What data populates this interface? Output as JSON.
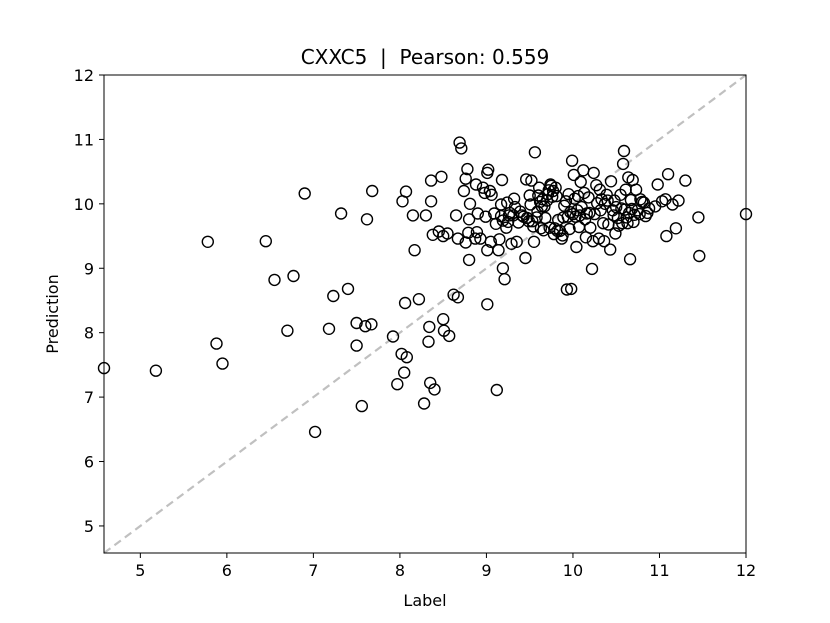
{
  "chart_data": {
    "type": "scatter",
    "title": "CXXC5  |  Pearson: 0.559",
    "xlabel": "Label",
    "ylabel": "Prediction",
    "xlim": [
      4.58,
      12.0
    ],
    "ylim": [
      4.58,
      12.0
    ],
    "xticks": [
      5,
      6,
      7,
      8,
      9,
      10,
      11,
      12
    ],
    "yticks": [
      5,
      6,
      7,
      8,
      9,
      10,
      11,
      12
    ],
    "grid": false,
    "reference_line": {
      "from": [
        4.58,
        4.58
      ],
      "to": [
        12.0,
        12.0
      ],
      "style": "dashed",
      "color": "#c0c0c0"
    },
    "marker": {
      "shape": "circle",
      "fill": "none",
      "stroke": "#000000"
    },
    "points": [
      [
        4.58,
        7.45
      ],
      [
        5.18,
        7.41
      ],
      [
        5.78,
        9.41
      ],
      [
        5.88,
        7.83
      ],
      [
        5.95,
        7.52
      ],
      [
        6.45,
        9.42
      ],
      [
        6.55,
        8.82
      ],
      [
        6.7,
        8.03
      ],
      [
        6.77,
        8.88
      ],
      [
        6.9,
        10.16
      ],
      [
        7.02,
        6.46
      ],
      [
        7.18,
        8.06
      ],
      [
        7.23,
        8.57
      ],
      [
        7.32,
        9.85
      ],
      [
        7.4,
        8.68
      ],
      [
        7.5,
        8.15
      ],
      [
        7.5,
        7.8
      ],
      [
        7.56,
        6.86
      ],
      [
        7.6,
        8.1
      ],
      [
        7.62,
        9.76
      ],
      [
        7.67,
        8.13
      ],
      [
        7.68,
        10.2
      ],
      [
        7.92,
        7.94
      ],
      [
        7.97,
        7.2
      ],
      [
        8.02,
        7.67
      ],
      [
        8.03,
        10.04
      ],
      [
        8.05,
        7.38
      ],
      [
        8.06,
        8.46
      ],
      [
        8.07,
        10.19
      ],
      [
        8.08,
        7.62
      ],
      [
        8.15,
        9.82
      ],
      [
        8.17,
        9.28
      ],
      [
        8.22,
        8.52
      ],
      [
        8.28,
        6.9
      ],
      [
        8.3,
        9.82
      ],
      [
        8.33,
        7.86
      ],
      [
        8.34,
        8.09
      ],
      [
        8.35,
        7.22
      ],
      [
        8.36,
        10.36
      ],
      [
        8.36,
        10.04
      ],
      [
        8.38,
        9.52
      ],
      [
        8.4,
        7.12
      ],
      [
        8.45,
        9.57
      ],
      [
        8.48,
        10.42
      ],
      [
        8.5,
        9.5
      ],
      [
        8.5,
        8.21
      ],
      [
        8.51,
        8.03
      ],
      [
        8.55,
        9.54
      ],
      [
        8.57,
        7.95
      ],
      [
        8.62,
        8.59
      ],
      [
        8.65,
        9.82
      ],
      [
        8.67,
        9.46
      ],
      [
        8.67,
        8.55
      ],
      [
        8.69,
        10.95
      ],
      [
        8.71,
        10.86
      ],
      [
        8.74,
        10.2
      ],
      [
        8.76,
        9.4
      ],
      [
        8.76,
        10.39
      ],
      [
        8.78,
        10.54
      ],
      [
        8.79,
        9.55
      ],
      [
        8.8,
        9.76
      ],
      [
        8.8,
        9.13
      ],
      [
        8.81,
        10.0
      ],
      [
        8.87,
        9.46
      ],
      [
        8.88,
        10.3
      ],
      [
        8.89,
        9.56
      ],
      [
        8.9,
        9.85
      ],
      [
        8.93,
        9.46
      ],
      [
        8.96,
        10.25
      ],
      [
        8.98,
        10.17
      ],
      [
        8.99,
        9.8
      ],
      [
        9.01,
        9.28
      ],
      [
        9.01,
        8.44
      ],
      [
        9.01,
        10.48
      ],
      [
        9.02,
        10.53
      ],
      [
        9.04,
        10.2
      ],
      [
        9.05,
        9.41
      ],
      [
        9.06,
        10.14
      ],
      [
        9.09,
        9.85
      ],
      [
        9.11,
        9.69
      ],
      [
        9.12,
        7.11
      ],
      [
        9.14,
        9.28
      ],
      [
        9.15,
        9.45
      ],
      [
        9.17,
        9.81
      ],
      [
        9.17,
        9.99
      ],
      [
        9.18,
        10.37
      ],
      [
        9.19,
        9.74
      ],
      [
        9.19,
        9.0
      ],
      [
        9.21,
        8.83
      ],
      [
        9.23,
        9.63
      ],
      [
        9.24,
        10.02
      ],
      [
        9.25,
        9.72
      ],
      [
        9.26,
        9.82
      ],
      [
        9.27,
        9.86
      ],
      [
        9.29,
        9.38
      ],
      [
        9.31,
        9.82
      ],
      [
        9.32,
        10.08
      ],
      [
        9.33,
        9.95
      ],
      [
        9.35,
        9.41
      ],
      [
        9.37,
        9.71
      ],
      [
        9.39,
        9.88
      ],
      [
        9.41,
        9.82
      ],
      [
        9.43,
        9.8
      ],
      [
        9.45,
        9.16
      ],
      [
        9.46,
        10.38
      ],
      [
        9.47,
        9.78
      ],
      [
        9.49,
        9.73
      ],
      [
        9.5,
        10.13
      ],
      [
        9.51,
        9.99
      ],
      [
        9.52,
        10.36
      ],
      [
        9.53,
        9.73
      ],
      [
        9.54,
        9.65
      ],
      [
        9.55,
        9.41
      ],
      [
        9.56,
        10.8
      ],
      [
        9.58,
        9.79
      ],
      [
        9.59,
        9.88
      ],
      [
        9.6,
        10.13
      ],
      [
        9.61,
        10.25
      ],
      [
        9.62,
        10.03
      ],
      [
        9.63,
        9.62
      ],
      [
        9.64,
        9.96
      ],
      [
        9.65,
        10.07
      ],
      [
        9.66,
        9.59
      ],
      [
        9.67,
        9.96
      ],
      [
        9.68,
        9.78
      ],
      [
        9.7,
        10.05
      ],
      [
        9.71,
        10.15
      ],
      [
        9.72,
        10.21
      ],
      [
        9.73,
        9.63
      ],
      [
        9.74,
        10.3
      ],
      [
        9.75,
        10.28
      ],
      [
        9.76,
        10.11
      ],
      [
        9.77,
        10.2
      ],
      [
        9.78,
        9.53
      ],
      [
        9.79,
        9.62
      ],
      [
        9.8,
        10.25
      ],
      [
        9.81,
        10.12
      ],
      [
        9.82,
        9.58
      ],
      [
        9.83,
        9.75
      ],
      [
        9.85,
        9.58
      ],
      [
        9.87,
        9.46
      ],
      [
        9.88,
        9.51
      ],
      [
        9.89,
        9.79
      ],
      [
        9.9,
        9.97
      ],
      [
        9.92,
        10.04
      ],
      [
        9.93,
        8.67
      ],
      [
        9.94,
        9.8
      ],
      [
        9.95,
        10.15
      ],
      [
        9.96,
        9.61
      ],
      [
        9.97,
        9.87
      ],
      [
        9.98,
        8.68
      ],
      [
        9.99,
        10.67
      ],
      [
        10.0,
        9.84
      ],
      [
        10.01,
        10.45
      ],
      [
        10.02,
        10.08
      ],
      [
        10.03,
        9.8
      ],
      [
        10.04,
        9.33
      ],
      [
        10.05,
        9.9
      ],
      [
        10.06,
        10.12
      ],
      [
        10.07,
        9.64
      ],
      [
        10.08,
        9.82
      ],
      [
        10.09,
        10.34
      ],
      [
        10.1,
        9.95
      ],
      [
        10.12,
        10.52
      ],
      [
        10.13,
        10.17
      ],
      [
        10.14,
        9.76
      ],
      [
        10.15,
        9.48
      ],
      [
        10.16,
        9.85
      ],
      [
        10.18,
        10.1
      ],
      [
        10.19,
        9.86
      ],
      [
        10.2,
        9.63
      ],
      [
        10.22,
        8.99
      ],
      [
        10.23,
        9.42
      ],
      [
        10.24,
        10.48
      ],
      [
        10.25,
        9.84
      ],
      [
        10.27,
        10.29
      ],
      [
        10.28,
        10.01
      ],
      [
        10.3,
        9.46
      ],
      [
        10.31,
        10.22
      ],
      [
        10.32,
        9.9
      ],
      [
        10.33,
        10.07
      ],
      [
        10.35,
        9.7
      ],
      [
        10.36,
        9.42
      ],
      [
        10.37,
        10.0
      ],
      [
        10.39,
        10.14
      ],
      [
        10.4,
        10.05
      ],
      [
        10.41,
        9.68
      ],
      [
        10.43,
        9.29
      ],
      [
        10.44,
        10.35
      ],
      [
        10.46,
        9.9
      ],
      [
        10.47,
        9.82
      ],
      [
        10.48,
        10.05
      ],
      [
        10.49,
        9.54
      ],
      [
        10.5,
        9.95
      ],
      [
        10.52,
        9.78
      ],
      [
        10.53,
        9.66
      ],
      [
        10.55,
        10.14
      ],
      [
        10.56,
        9.93
      ],
      [
        10.57,
        9.7
      ],
      [
        10.58,
        10.62
      ],
      [
        10.59,
        10.82
      ],
      [
        10.6,
        9.91
      ],
      [
        10.61,
        10.22
      ],
      [
        10.62,
        9.79
      ],
      [
        10.63,
        9.7
      ],
      [
        10.64,
        10.41
      ],
      [
        10.65,
        9.86
      ],
      [
        10.66,
        9.14
      ],
      [
        10.67,
        10.06
      ],
      [
        10.68,
        9.92
      ],
      [
        10.69,
        10.37
      ],
      [
        10.7,
        9.72
      ],
      [
        10.71,
        9.83
      ],
      [
        10.73,
        10.22
      ],
      [
        10.75,
        9.9
      ],
      [
        10.77,
        9.84
      ],
      [
        10.78,
        10.07
      ],
      [
        10.8,
        10.03
      ],
      [
        10.82,
        10.02
      ],
      [
        10.84,
        9.81
      ],
      [
        10.86,
        9.86
      ],
      [
        10.88,
        9.93
      ],
      [
        10.95,
        9.96
      ],
      [
        10.98,
        10.3
      ],
      [
        11.03,
        10.04
      ],
      [
        11.07,
        10.07
      ],
      [
        11.08,
        9.5
      ],
      [
        11.1,
        10.46
      ],
      [
        11.15,
        9.99
      ],
      [
        11.19,
        9.62
      ],
      [
        11.22,
        10.05
      ],
      [
        11.3,
        10.36
      ],
      [
        11.45,
        9.79
      ],
      [
        11.46,
        9.19
      ],
      [
        12.0,
        9.84
      ]
    ]
  }
}
